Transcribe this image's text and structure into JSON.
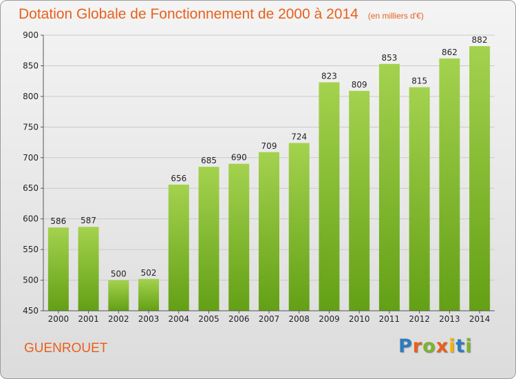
{
  "chart_data": {
    "type": "bar",
    "title": "Dotation Globale de Fonctionnement de 2000 à 2014",
    "subtitle": "(en milliers d'€)",
    "categories": [
      "2000",
      "2001",
      "2002",
      "2003",
      "2004",
      "2005",
      "2006",
      "2007",
      "2008",
      "2009",
      "2010",
      "2011",
      "2012",
      "2013",
      "2014"
    ],
    "values": [
      586,
      587,
      500,
      502,
      656,
      685,
      690,
      709,
      724,
      823,
      809,
      853,
      815,
      862,
      882
    ],
    "data_labels": [
      "586",
      "587",
      "500",
      "502",
      "656",
      "685",
      "690",
      "709",
      "724",
      "823",
      "809",
      "853",
      "815",
      "862",
      "882"
    ],
    "ylim": [
      450,
      900
    ],
    "yticks": [
      "450",
      "500",
      "550",
      "600",
      "650",
      "700",
      "750",
      "800",
      "850",
      "900"
    ],
    "grid": true,
    "bar_color_top": "#a4d24e",
    "bar_color_bottom": "#63a016"
  },
  "footer": {
    "city": "GUENROUET",
    "logo_letters": [
      "P",
      "r",
      "o",
      "x",
      "i",
      "t",
      "i"
    ],
    "logo_colors": [
      "#2e7bbf",
      "#e8601c",
      "#7db32e",
      "#e8601c",
      "#f2b400",
      "#2e7bbf",
      "#7db32e"
    ]
  }
}
